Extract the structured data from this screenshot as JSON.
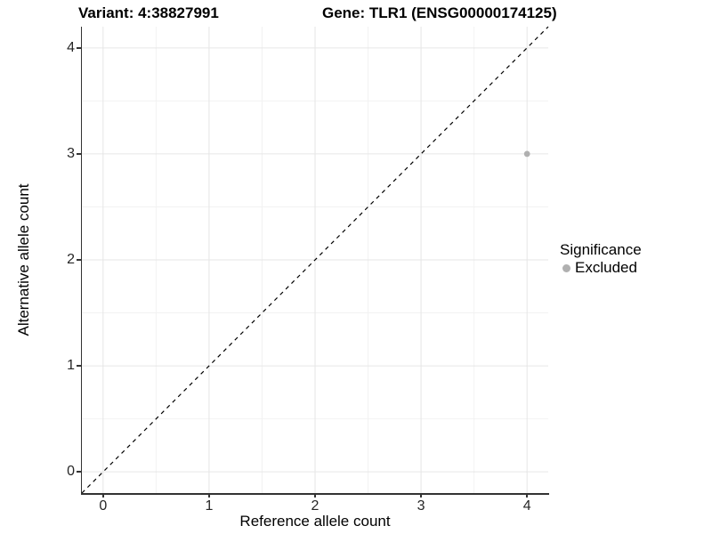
{
  "titles": {
    "variant": "Variant: 4:38827991",
    "gene": "Gene: TLR1 (ENSG00000174125)"
  },
  "chart_data": {
    "type": "scatter",
    "xlabel": "Reference allele count",
    "ylabel": "Alternative allele count",
    "xlim": [
      -0.2,
      4.2
    ],
    "ylim": [
      -0.2,
      4.2
    ],
    "x_ticks": [
      0,
      1,
      2,
      3,
      4
    ],
    "y_ticks": [
      0,
      1,
      2,
      3,
      4
    ],
    "minor_breaks": [
      0.5,
      1.5,
      2.5,
      3.5
    ],
    "grid": true,
    "points": [
      {
        "x": 4,
        "y": 3,
        "series": "Excluded"
      }
    ],
    "identity_line": {
      "style": "dashed",
      "from": [
        -0.2,
        -0.2
      ],
      "to": [
        4.2,
        4.2
      ],
      "color": "#000000"
    },
    "legend": {
      "position": "right",
      "title": "Significance",
      "entries": [
        {
          "label": "Excluded",
          "color": "#b0b0b0"
        }
      ]
    },
    "style": {
      "background": "#ffffff",
      "grid_major": "#e6e6e6",
      "grid_minor": "#f2f2f2",
      "axis_color": "#333333",
      "tick_label_color": "#262626",
      "point_color": "#b0b0b0"
    }
  }
}
